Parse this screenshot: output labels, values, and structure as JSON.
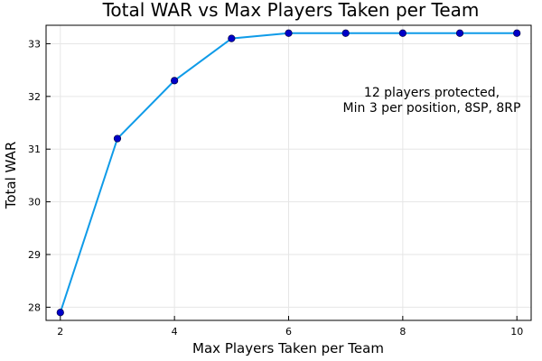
{
  "chart_data": {
    "type": "line",
    "title": "Total WAR vs Max Players Taken per Team",
    "xlabel": "Max Players Taken per Team",
    "ylabel": "Total WAR",
    "xlim": [
      1.75,
      10.25
    ],
    "ylim": [
      27.75,
      33.35
    ],
    "xticks": [
      2,
      4,
      6,
      8,
      10
    ],
    "yticks": [
      28,
      29,
      30,
      31,
      32,
      33
    ],
    "grid": true,
    "annotation": [
      "12 players protected,",
      "Min 3 per position, 8SP, 8RP"
    ],
    "line_color": "#0f9be8",
    "marker_color": "#0000c8",
    "series": [
      {
        "x": [
          2,
          3,
          4,
          5,
          6,
          7,
          8,
          9,
          10
        ],
        "y": [
          27.9,
          31.2,
          32.3,
          33.1,
          33.2,
          33.2,
          33.2,
          33.2,
          33.2
        ]
      }
    ]
  }
}
